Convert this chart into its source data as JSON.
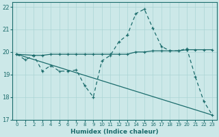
{
  "xlabel": "Humidex (Indice chaleur)",
  "bg_color": "#cce8e8",
  "line_color": "#1a6b6b",
  "grid_color": "#aad4d4",
  "xlim": [
    -0.5,
    23.5
  ],
  "ylim": [
    17,
    22.2
  ],
  "yticks": [
    17,
    18,
    19,
    20,
    21,
    22
  ],
  "xticks": [
    0,
    1,
    2,
    3,
    4,
    5,
    6,
    7,
    8,
    9,
    10,
    11,
    12,
    13,
    14,
    15,
    16,
    17,
    18,
    19,
    20,
    21,
    22,
    23
  ],
  "line_wavy": {
    "x": [
      0,
      1,
      2,
      3,
      4,
      5,
      6,
      7,
      8,
      9,
      10,
      11,
      12,
      13,
      14,
      15,
      16,
      17,
      18,
      19,
      20,
      21,
      22,
      23
    ],
    "y": [
      19.9,
      19.65,
      19.85,
      19.15,
      19.4,
      19.15,
      19.15,
      19.2,
      18.5,
      18.0,
      19.6,
      19.85,
      20.45,
      20.75,
      21.7,
      21.9,
      21.05,
      20.25,
      20.05,
      20.05,
      20.15,
      18.9,
      17.8,
      17.2
    ]
  },
  "line_flat": {
    "x": [
      0,
      2,
      3,
      4,
      5,
      6,
      7,
      8,
      9,
      10,
      11,
      12,
      13,
      14,
      15,
      16,
      17,
      18,
      19,
      20,
      21,
      22,
      23
    ],
    "y": [
      19.9,
      19.85,
      19.85,
      19.9,
      19.9,
      19.9,
      19.9,
      19.9,
      19.9,
      19.9,
      19.9,
      19.9,
      19.9,
      20.0,
      20.0,
      20.05,
      20.05,
      20.05,
      20.05,
      20.1,
      20.1,
      20.1,
      20.1
    ]
  },
  "line_diag": {
    "x": [
      0,
      23
    ],
    "y": [
      19.9,
      17.2
    ]
  }
}
